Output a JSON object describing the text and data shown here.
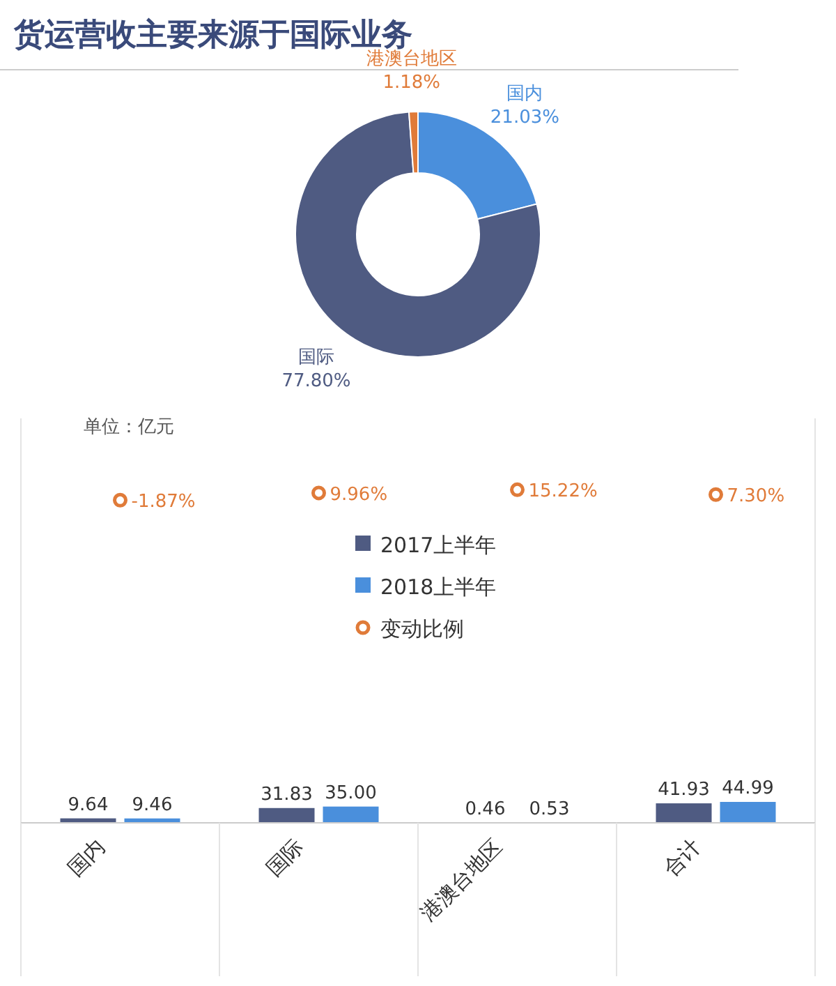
{
  "chart_data": [
    {
      "type": "donut",
      "title": "货运营收主要来源于国际业务",
      "categories": [
        "国内",
        "国际",
        "港澳台地区"
      ],
      "values": [
        21.03,
        77.8,
        1.18
      ],
      "colors": [
        "#4a8fdc",
        "#4f5b82",
        "#e07b39"
      ],
      "value_labels": [
        "21.03%",
        "77.80%",
        "1.18%"
      ],
      "legend": false
    },
    {
      "type": "bar",
      "categories": [
        "国内",
        "国际",
        "港澳台地区",
        "合计"
      ],
      "annotations": [
        "单位：亿元"
      ],
      "ylim": [
        0,
        870
      ],
      "y2lim": [
        -530,
        132
      ],
      "tick_labels": "x",
      "legend": "top",
      "series": [
        {
          "name": "2017上半年",
          "type": "bar",
          "color": "#4f5b82",
          "values": [
            9.64,
            31.83,
            0.46,
            41.93
          ],
          "value_labels": [
            "9.64",
            "31.83",
            "0.46",
            "41.93"
          ]
        },
        {
          "name": "2018上半年",
          "type": "bar",
          "color": "#4a8fdc",
          "values": [
            9.46,
            35.0,
            0.53,
            44.99
          ],
          "value_labels": [
            "9.46",
            "35.00",
            "0.53",
            "44.99"
          ]
        },
        {
          "name": "变动比例",
          "type": "scatter",
          "axis": "y2",
          "marker": "circle",
          "color": "#e07b39",
          "values": [
            -1.87,
            9.96,
            15.22,
            7.3
          ],
          "value_labels": [
            "-1.87%",
            "9.96%",
            "15.22%",
            "7.30%"
          ]
        }
      ]
    }
  ]
}
